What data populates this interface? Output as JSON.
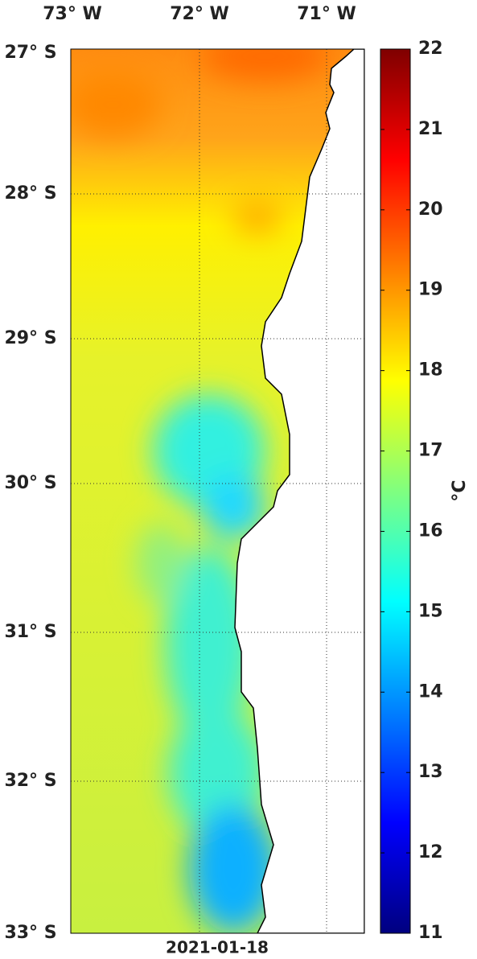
{
  "map": {
    "lon_labels": [
      "73° W",
      "72° W",
      "71° W"
    ],
    "lat_labels": [
      "27° S",
      "28° S",
      "29° S",
      "30° S",
      "31° S",
      "32° S",
      "33° S"
    ],
    "date": "2021-01-18",
    "colorbar": {
      "label": "°C",
      "lim": [
        11,
        22
      ],
      "ticks": [
        11,
        12,
        13,
        14,
        15,
        16,
        17,
        18,
        19,
        20,
        21,
        22
      ]
    }
  }
}
